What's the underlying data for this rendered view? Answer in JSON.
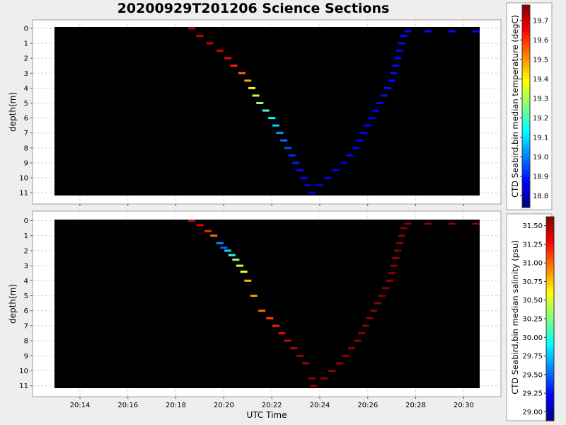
{
  "title": "20200929T201206 Science Sections",
  "chart_data": [
    {
      "type": "scatter",
      "title": "",
      "xlabel": "",
      "ylabel": "depth(m)",
      "xticks": [
        "20:14",
        "20:16",
        "20:18",
        "20:20",
        "20:22",
        "20:24",
        "20:26",
        "20:28",
        "20:30"
      ],
      "yticks": [
        "0",
        "1",
        "2",
        "3",
        "4",
        "5",
        "6",
        "7",
        "8",
        "9",
        "10",
        "11"
      ],
      "ylim": [
        11.0,
        0
      ],
      "grid": true,
      "colorbar_label": "CTD Seabird.bin median temperature (degC)",
      "colorbar_ticks": [
        "19.7",
        "19.6",
        "19.5",
        "19.4",
        "19.3",
        "19.2",
        "19.1",
        "19.0",
        "18.9",
        "18.8"
      ],
      "colorbar_range": [
        18.74,
        19.78
      ],
      "series": [
        {
          "points": [
            {
              "time": "20:18:40",
              "depth": 0.0,
              "value": 19.72
            },
            {
              "time": "20:19:00",
              "depth": 0.5,
              "value": 19.71
            },
            {
              "time": "20:19:25",
              "depth": 1.0,
              "value": 19.7
            },
            {
              "time": "20:19:50",
              "depth": 1.5,
              "value": 19.69
            },
            {
              "time": "20:20:10",
              "depth": 2.0,
              "value": 19.67
            },
            {
              "time": "20:20:25",
              "depth": 2.5,
              "value": 19.62
            },
            {
              "time": "20:20:45",
              "depth": 3.0,
              "value": 19.55
            },
            {
              "time": "20:21:00",
              "depth": 3.5,
              "value": 19.48
            },
            {
              "time": "20:21:10",
              "depth": 4.0,
              "value": 19.4
            },
            {
              "time": "20:21:20",
              "depth": 4.5,
              "value": 19.33
            },
            {
              "time": "20:21:30",
              "depth": 5.0,
              "value": 19.27
            },
            {
              "time": "20:21:45",
              "depth": 5.5,
              "value": 19.2
            },
            {
              "time": "20:22:00",
              "depth": 6.0,
              "value": 19.13
            },
            {
              "time": "20:22:10",
              "depth": 6.5,
              "value": 19.08
            },
            {
              "time": "20:22:20",
              "depth": 7.0,
              "value": 19.03
            },
            {
              "time": "20:22:30",
              "depth": 7.5,
              "value": 18.98
            },
            {
              "time": "20:22:40",
              "depth": 8.0,
              "value": 18.95
            },
            {
              "time": "20:22:50",
              "depth": 8.5,
              "value": 18.92
            },
            {
              "time": "20:23:00",
              "depth": 9.0,
              "value": 18.9
            },
            {
              "time": "20:23:10",
              "depth": 9.5,
              "value": 18.88
            },
            {
              "time": "20:23:20",
              "depth": 10.0,
              "value": 18.86
            },
            {
              "time": "20:23:30",
              "depth": 10.5,
              "value": 18.84
            },
            {
              "time": "20:23:40",
              "depth": 11.0,
              "value": 18.83
            },
            {
              "time": "20:24:00",
              "depth": 10.5,
              "value": 18.83
            },
            {
              "time": "20:24:20",
              "depth": 10.0,
              "value": 18.84
            },
            {
              "time": "20:24:40",
              "depth": 9.5,
              "value": 18.85
            },
            {
              "time": "20:25:00",
              "depth": 9.0,
              "value": 18.85
            },
            {
              "time": "20:25:15",
              "depth": 8.5,
              "value": 18.86
            },
            {
              "time": "20:25:30",
              "depth": 8.0,
              "value": 18.86
            },
            {
              "time": "20:25:40",
              "depth": 7.5,
              "value": 18.87
            },
            {
              "time": "20:25:50",
              "depth": 7.0,
              "value": 18.87
            },
            {
              "time": "20:26:00",
              "depth": 6.5,
              "value": 18.87
            },
            {
              "time": "20:26:10",
              "depth": 6.0,
              "value": 18.87
            },
            {
              "time": "20:26:20",
              "depth": 5.5,
              "value": 18.87
            },
            {
              "time": "20:26:30",
              "depth": 5.0,
              "value": 18.88
            },
            {
              "time": "20:26:40",
              "depth": 4.5,
              "value": 18.88
            },
            {
              "time": "20:26:50",
              "depth": 4.0,
              "value": 18.88
            },
            {
              "time": "20:27:00",
              "depth": 3.5,
              "value": 18.88
            },
            {
              "time": "20:27:05",
              "depth": 3.0,
              "value": 18.88
            },
            {
              "time": "20:27:10",
              "depth": 2.5,
              "value": 18.88
            },
            {
              "time": "20:27:15",
              "depth": 2.0,
              "value": 18.88
            },
            {
              "time": "20:27:20",
              "depth": 1.5,
              "value": 18.88
            },
            {
              "time": "20:27:25",
              "depth": 1.0,
              "value": 18.88
            },
            {
              "time": "20:27:30",
              "depth": 0.5,
              "value": 18.88
            },
            {
              "time": "20:27:40",
              "depth": 0.2,
              "value": 18.88
            },
            {
              "time": "20:28:30",
              "depth": 0.2,
              "value": 18.88
            },
            {
              "time": "20:29:30",
              "depth": 0.2,
              "value": 18.88
            },
            {
              "time": "20:30:30",
              "depth": 0.2,
              "value": 18.88
            }
          ]
        }
      ]
    },
    {
      "type": "scatter",
      "title": "",
      "xlabel": "UTC Time",
      "ylabel": "depth(m)",
      "xticks": [
        "20:14",
        "20:16",
        "20:18",
        "20:20",
        "20:22",
        "20:24",
        "20:26",
        "20:28",
        "20:30"
      ],
      "yticks": [
        "0",
        "1",
        "2",
        "3",
        "4",
        "5",
        "6",
        "7",
        "8",
        "9",
        "10",
        "11"
      ],
      "ylim": [
        11.0,
        0
      ],
      "grid": true,
      "colorbar_label": "CTD Seabird.bin median salinity (psu)",
      "colorbar_ticks": [
        "31.50",
        "31.25",
        "31.00",
        "30.75",
        "30.50",
        "30.25",
        "30.00",
        "29.75",
        "29.50",
        "29.25",
        "29.00"
      ],
      "colorbar_range": [
        28.88,
        31.62
      ],
      "series": [
        {
          "points": [
            {
              "time": "20:18:40",
              "depth": 0.0,
              "value": 31.4
            },
            {
              "time": "20:19:00",
              "depth": 0.3,
              "value": 31.35
            },
            {
              "time": "20:19:20",
              "depth": 0.7,
              "value": 31.2
            },
            {
              "time": "20:19:35",
              "depth": 1.0,
              "value": 31.0
            },
            {
              "time": "20:19:50",
              "depth": 1.5,
              "value": 29.6
            },
            {
              "time": "20:20:00",
              "depth": 1.8,
              "value": 29.5
            },
            {
              "time": "20:20:10",
              "depth": 2.0,
              "value": 29.8
            },
            {
              "time": "20:20:20",
              "depth": 2.3,
              "value": 30.0
            },
            {
              "time": "20:20:30",
              "depth": 2.6,
              "value": 30.3
            },
            {
              "time": "20:20:40",
              "depth": 3.0,
              "value": 30.5
            },
            {
              "time": "20:20:50",
              "depth": 3.4,
              "value": 30.6
            },
            {
              "time": "20:21:00",
              "depth": 4.0,
              "value": 30.8
            },
            {
              "time": "20:21:15",
              "depth": 5.0,
              "value": 30.9
            },
            {
              "time": "20:21:35",
              "depth": 6.0,
              "value": 31.0
            },
            {
              "time": "20:21:55",
              "depth": 6.5,
              "value": 31.1
            },
            {
              "time": "20:22:10",
              "depth": 7.0,
              "value": 31.2
            },
            {
              "time": "20:22:25",
              "depth": 7.5,
              "value": 31.3
            },
            {
              "time": "20:22:40",
              "depth": 8.0,
              "value": 31.4
            },
            {
              "time": "20:22:55",
              "depth": 8.5,
              "value": 31.45
            },
            {
              "time": "20:23:10",
              "depth": 9.0,
              "value": 31.5
            },
            {
              "time": "20:23:25",
              "depth": 9.5,
              "value": 31.52
            },
            {
              "time": "20:23:40",
              "depth": 10.5,
              "value": 31.55
            },
            {
              "time": "20:23:45",
              "depth": 11.0,
              "value": 31.58
            },
            {
              "time": "20:24:10",
              "depth": 10.5,
              "value": 31.58
            },
            {
              "time": "20:24:30",
              "depth": 10.0,
              "value": 31.58
            },
            {
              "time": "20:24:50",
              "depth": 9.5,
              "value": 31.58
            },
            {
              "time": "20:25:05",
              "depth": 9.0,
              "value": 31.58
            },
            {
              "time": "20:25:20",
              "depth": 8.5,
              "value": 31.58
            },
            {
              "time": "20:25:35",
              "depth": 8.0,
              "value": 31.58
            },
            {
              "time": "20:25:45",
              "depth": 7.5,
              "value": 31.58
            },
            {
              "time": "20:25:55",
              "depth": 7.0,
              "value": 31.58
            },
            {
              "time": "20:26:05",
              "depth": 6.5,
              "value": 31.58
            },
            {
              "time": "20:26:15",
              "depth": 6.0,
              "value": 31.58
            },
            {
              "time": "20:26:25",
              "depth": 5.5,
              "value": 31.58
            },
            {
              "time": "20:26:35",
              "depth": 5.0,
              "value": 31.58
            },
            {
              "time": "20:26:45",
              "depth": 4.5,
              "value": 31.58
            },
            {
              "time": "20:26:55",
              "depth": 4.0,
              "value": 31.58
            },
            {
              "time": "20:27:00",
              "depth": 3.5,
              "value": 31.58
            },
            {
              "time": "20:27:05",
              "depth": 3.0,
              "value": 31.58
            },
            {
              "time": "20:27:10",
              "depth": 2.5,
              "value": 31.58
            },
            {
              "time": "20:27:15",
              "depth": 2.0,
              "value": 31.58
            },
            {
              "time": "20:27:20",
              "depth": 1.5,
              "value": 31.58
            },
            {
              "time": "20:27:25",
              "depth": 1.0,
              "value": 31.58
            },
            {
              "time": "20:27:30",
              "depth": 0.5,
              "value": 31.58
            },
            {
              "time": "20:27:40",
              "depth": 0.2,
              "value": 31.58
            },
            {
              "time": "20:28:30",
              "depth": 0.2,
              "value": 31.58
            },
            {
              "time": "20:29:30",
              "depth": 0.2,
              "value": 31.58
            },
            {
              "time": "20:30:30",
              "depth": 0.2,
              "value": 31.58
            }
          ]
        }
      ]
    }
  ]
}
